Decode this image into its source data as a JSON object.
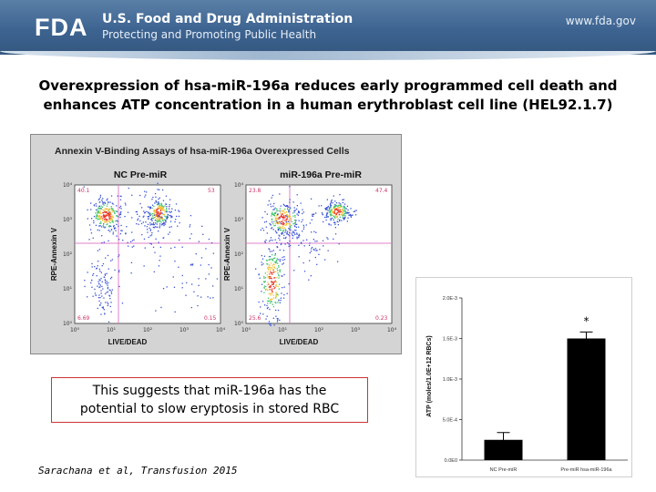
{
  "header": {
    "agency": "U.S. Food and Drug Administration",
    "tagline": "Protecting and Promoting Public Health",
    "url": "www.fda.gov",
    "logo_text": "FDA"
  },
  "slide": {
    "title_line1": "Overexpression of hsa-miR-196a reduces early programmed cell death and",
    "title_line2": "enhances ATP concentration in a human erythroblast cell line (HEL92.1.7)",
    "caption_line1": "This suggests that miR-196a has the",
    "caption_line2": "potential to slow eryptosis in stored RBC",
    "citation": "Sarachana et al, Transfusion 2015"
  },
  "flow_figure": {
    "title": "Annexin V-Binding Assays of hsa-miR-196a Overexpressed Cells",
    "panels": [
      {
        "name": "NC Pre-miR",
        "quadrants": {
          "ul": "40.1",
          "ur": "53",
          "ll": "6.69",
          "lr": "0.15"
        }
      },
      {
        "name": "miR-196a Pre-miR",
        "quadrants": {
          "ul": "23.8",
          "ur": "47.4",
          "ll": "25.6",
          "lr": "0.23"
        }
      }
    ],
    "xlabel": "LIVE/DEAD",
    "ylabel": "RPE-Annexin V",
    "ticks": [
      "10⁰",
      "10¹",
      "10²",
      "10³",
      "10⁴"
    ]
  },
  "chart_data": {
    "type": "bar",
    "categories": [
      "NC Pre-miR",
      "Pre-miR hsa-miR-196a"
    ],
    "values": [
      0.00025,
      0.0015
    ],
    "errors": [
      9e-05,
      8e-05
    ],
    "ylabel": "ATP (moles/1.0E+12 RBCs)",
    "ylim": [
      0,
      0.002
    ],
    "yticks": [
      {
        "value": 0,
        "label": "0.0E0"
      },
      {
        "value": 0.0005,
        "label": "5.0E-4"
      },
      {
        "value": 0.001,
        "label": "1.0E-3"
      },
      {
        "value": 0.0015,
        "label": "1.5E-3"
      },
      {
        "value": 0.002,
        "label": "2.0E-3"
      }
    ],
    "annotation": "*",
    "bar_color": "#000000"
  }
}
